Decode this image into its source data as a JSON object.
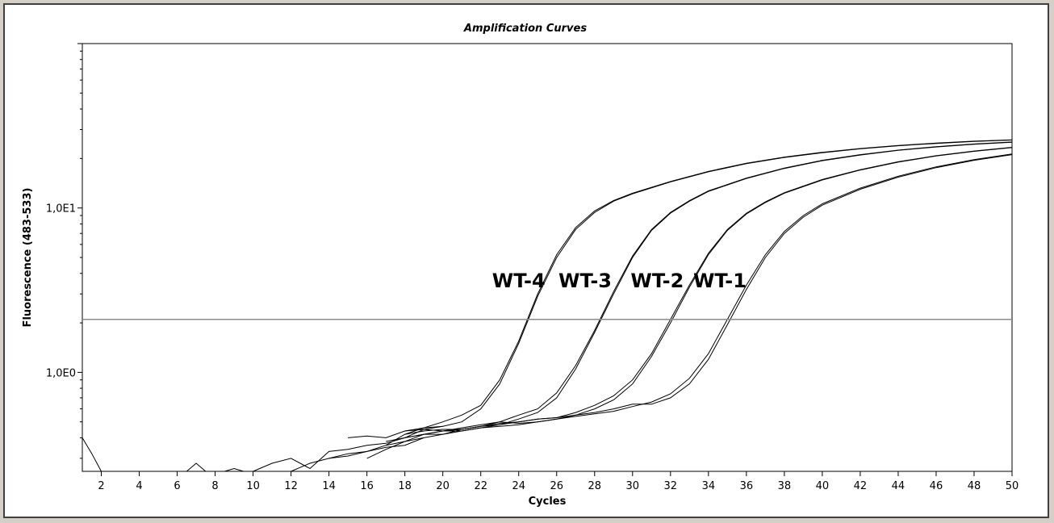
{
  "chart_data": {
    "type": "line",
    "title": "Amplification Curves",
    "xlabel": "Cycles",
    "ylabel": "Fluorescence (483-533)",
    "xlim": [
      1,
      50
    ],
    "ylim": [
      0.25,
      100
    ],
    "yscale": "log",
    "x_ticks": [
      2,
      4,
      6,
      8,
      10,
      12,
      14,
      16,
      18,
      20,
      22,
      24,
      26,
      28,
      30,
      32,
      34,
      36,
      38,
      40,
      42,
      44,
      46,
      48,
      50
    ],
    "y_tick_labels": [
      {
        "value": 1.0,
        "label": "1,0E0"
      },
      {
        "value": 10.0,
        "label": "1,0E1"
      }
    ],
    "grid": false,
    "threshold": 2.1,
    "series": [
      {
        "name": "WT-4",
        "midpoint": 25.0,
        "points": [
          [
            15,
            0.4
          ],
          [
            16,
            0.41
          ],
          [
            17,
            0.4
          ],
          [
            18,
            0.44
          ],
          [
            19,
            0.46
          ],
          [
            20,
            0.5
          ],
          [
            21,
            0.55
          ],
          [
            22,
            0.63
          ],
          [
            23,
            0.9
          ],
          [
            24,
            1.55
          ],
          [
            25,
            3.0
          ],
          [
            26,
            5.2
          ],
          [
            27,
            7.6
          ],
          [
            28,
            9.6
          ],
          [
            29,
            11.1
          ],
          [
            30,
            12.3
          ],
          [
            32,
            14.5
          ],
          [
            34,
            16.7
          ],
          [
            36,
            18.7
          ],
          [
            38,
            20.4
          ],
          [
            40,
            21.8
          ],
          [
            42,
            23.0
          ],
          [
            44,
            24.0
          ],
          [
            46,
            24.8
          ],
          [
            48,
            25.5
          ],
          [
            50,
            26.0
          ]
        ]
      },
      {
        "name": "WT-4",
        "midpoint": 25.0,
        "points": [
          [
            17,
            0.37
          ],
          [
            18,
            0.4
          ],
          [
            19,
            0.45
          ],
          [
            20,
            0.47
          ],
          [
            21,
            0.5
          ],
          [
            22,
            0.6
          ],
          [
            23,
            0.85
          ],
          [
            24,
            1.5
          ],
          [
            25,
            2.9
          ],
          [
            26,
            5.0
          ],
          [
            27,
            7.4
          ],
          [
            28,
            9.4
          ],
          [
            29,
            11.0
          ],
          [
            30,
            12.2
          ],
          [
            32,
            14.4
          ],
          [
            34,
            16.6
          ],
          [
            36,
            18.6
          ],
          [
            38,
            20.3
          ],
          [
            40,
            21.7
          ],
          [
            42,
            22.9
          ],
          [
            44,
            23.9
          ],
          [
            46,
            24.7
          ],
          [
            48,
            25.4
          ],
          [
            50,
            25.9
          ]
        ]
      },
      {
        "name": "WT-3",
        "midpoint": 28.5,
        "points": [
          [
            16,
            0.3
          ],
          [
            17,
            0.34
          ],
          [
            18,
            0.38
          ],
          [
            19,
            0.42
          ],
          [
            20,
            0.44
          ],
          [
            21,
            0.44
          ],
          [
            22,
            0.46
          ],
          [
            23,
            0.48
          ],
          [
            24,
            0.52
          ],
          [
            25,
            0.57
          ],
          [
            26,
            0.7
          ],
          [
            27,
            1.05
          ],
          [
            28,
            1.75
          ],
          [
            29,
            3.0
          ],
          [
            30,
            5.0
          ],
          [
            31,
            7.3
          ],
          [
            32,
            9.3
          ],
          [
            33,
            11.0
          ],
          [
            34,
            12.6
          ],
          [
            36,
            15.1
          ],
          [
            38,
            17.4
          ],
          [
            40,
            19.4
          ],
          [
            42,
            21.0
          ],
          [
            44,
            22.4
          ],
          [
            46,
            23.5
          ],
          [
            48,
            24.4
          ],
          [
            50,
            25.1
          ]
        ]
      },
      {
        "name": "WT-3",
        "midpoint": 28.5,
        "points": [
          [
            17,
            0.36
          ],
          [
            18,
            0.38
          ],
          [
            19,
            0.4
          ],
          [
            20,
            0.42
          ],
          [
            21,
            0.45
          ],
          [
            22,
            0.47
          ],
          [
            23,
            0.5
          ],
          [
            24,
            0.55
          ],
          [
            25,
            0.6
          ],
          [
            26,
            0.75
          ],
          [
            27,
            1.1
          ],
          [
            28,
            1.8
          ],
          [
            29,
            3.1
          ],
          [
            30,
            5.1
          ],
          [
            31,
            7.4
          ],
          [
            32,
            9.4
          ],
          [
            33,
            11.1
          ],
          [
            34,
            12.7
          ],
          [
            36,
            15.2
          ],
          [
            38,
            17.5
          ],
          [
            40,
            19.5
          ],
          [
            42,
            21.1
          ],
          [
            44,
            22.5
          ],
          [
            46,
            23.6
          ],
          [
            48,
            24.5
          ],
          [
            50,
            25.2
          ]
        ]
      },
      {
        "name": "WT-2",
        "midpoint": 32.0,
        "points": [
          [
            17,
            0.38
          ],
          [
            18,
            0.4
          ],
          [
            19,
            0.42
          ],
          [
            20,
            0.42
          ],
          [
            21,
            0.44
          ],
          [
            22,
            0.46
          ],
          [
            23,
            0.47
          ],
          [
            24,
            0.48
          ],
          [
            25,
            0.5
          ],
          [
            26,
            0.52
          ],
          [
            27,
            0.55
          ],
          [
            28,
            0.6
          ],
          [
            29,
            0.68
          ],
          [
            30,
            0.85
          ],
          [
            31,
            1.25
          ],
          [
            32,
            2.0
          ],
          [
            33,
            3.3
          ],
          [
            34,
            5.2
          ],
          [
            35,
            7.3
          ],
          [
            36,
            9.2
          ],
          [
            37,
            10.8
          ],
          [
            38,
            12.3
          ],
          [
            40,
            14.8
          ],
          [
            42,
            17.0
          ],
          [
            44,
            19.0
          ],
          [
            46,
            20.7
          ],
          [
            48,
            22.1
          ],
          [
            50,
            23.3
          ]
        ]
      },
      {
        "name": "WT-2",
        "midpoint": 32.0,
        "points": [
          [
            18,
            0.42
          ],
          [
            19,
            0.44
          ],
          [
            20,
            0.45
          ],
          [
            21,
            0.45
          ],
          [
            22,
            0.47
          ],
          [
            23,
            0.49
          ],
          [
            24,
            0.5
          ],
          [
            25,
            0.52
          ],
          [
            26,
            0.53
          ],
          [
            27,
            0.57
          ],
          [
            28,
            0.63
          ],
          [
            29,
            0.72
          ],
          [
            30,
            0.9
          ],
          [
            31,
            1.3
          ],
          [
            32,
            2.1
          ],
          [
            33,
            3.4
          ],
          [
            34,
            5.3
          ],
          [
            35,
            7.4
          ],
          [
            36,
            9.3
          ],
          [
            37,
            10.9
          ],
          [
            38,
            12.4
          ],
          [
            40,
            14.9
          ],
          [
            42,
            17.1
          ],
          [
            44,
            19.1
          ],
          [
            46,
            20.8
          ],
          [
            48,
            22.2
          ],
          [
            50,
            23.4
          ]
        ]
      },
      {
        "name": "WT-1",
        "midpoint": 35.0,
        "points": [
          [
            18,
            0.44
          ],
          [
            19,
            0.45
          ],
          [
            20,
            0.44
          ],
          [
            21,
            0.46
          ],
          [
            22,
            0.48
          ],
          [
            23,
            0.5
          ],
          [
            24,
            0.49
          ],
          [
            25,
            0.5
          ],
          [
            26,
            0.52
          ],
          [
            27,
            0.54
          ],
          [
            28,
            0.56
          ],
          [
            29,
            0.58
          ],
          [
            30,
            0.62
          ],
          [
            31,
            0.66
          ],
          [
            32,
            0.74
          ],
          [
            33,
            0.92
          ],
          [
            34,
            1.3
          ],
          [
            35,
            2.1
          ],
          [
            36,
            3.4
          ],
          [
            37,
            5.2
          ],
          [
            38,
            7.2
          ],
          [
            39,
            9.0
          ],
          [
            40,
            10.6
          ],
          [
            42,
            13.2
          ],
          [
            44,
            15.6
          ],
          [
            46,
            17.8
          ],
          [
            48,
            19.7
          ],
          [
            50,
            21.3
          ]
        ]
      },
      {
        "name": "WT-1",
        "midpoint": 35.0,
        "points": [
          [
            18,
            0.4
          ],
          [
            19,
            0.42
          ],
          [
            20,
            0.44
          ],
          [
            21,
            0.45
          ],
          [
            22,
            0.47
          ],
          [
            23,
            0.48
          ],
          [
            24,
            0.5
          ],
          [
            25,
            0.52
          ],
          [
            26,
            0.53
          ],
          [
            27,
            0.55
          ],
          [
            28,
            0.57
          ],
          [
            29,
            0.6
          ],
          [
            30,
            0.64
          ],
          [
            31,
            0.64
          ],
          [
            32,
            0.7
          ],
          [
            33,
            0.85
          ],
          [
            34,
            1.2
          ],
          [
            35,
            1.95
          ],
          [
            36,
            3.2
          ],
          [
            37,
            5.0
          ],
          [
            38,
            7.0
          ],
          [
            39,
            8.8
          ],
          [
            40,
            10.4
          ],
          [
            42,
            13.0
          ],
          [
            44,
            15.4
          ],
          [
            46,
            17.6
          ],
          [
            48,
            19.5
          ],
          [
            50,
            21.1
          ]
        ]
      },
      {
        "name": "",
        "midpoint": null,
        "points": [
          [
            1,
            0.4
          ],
          [
            1.5,
            0.32
          ],
          [
            2,
            0.25
          ]
        ]
      },
      {
        "name": "",
        "midpoint": null,
        "points": [
          [
            6.5,
            0.25
          ],
          [
            7,
            0.28
          ],
          [
            7.5,
            0.25
          ]
        ]
      },
      {
        "name": "",
        "midpoint": null,
        "points": [
          [
            8.5,
            0.25
          ],
          [
            9,
            0.26
          ],
          [
            9.5,
            0.25
          ]
        ]
      },
      {
        "name": "",
        "midpoint": null,
        "points": [
          [
            10,
            0.25
          ],
          [
            11,
            0.28
          ],
          [
            12,
            0.3
          ],
          [
            13,
            0.26
          ],
          [
            14,
            0.33
          ],
          [
            15,
            0.34
          ],
          [
            16,
            0.36
          ],
          [
            17,
            0.37
          ]
        ]
      },
      {
        "name": "",
        "midpoint": null,
        "points": [
          [
            12,
            0.25
          ],
          [
            13,
            0.28
          ],
          [
            14,
            0.3
          ],
          [
            15,
            0.31
          ],
          [
            16,
            0.33
          ],
          [
            17,
            0.35
          ],
          [
            18,
            0.36
          ],
          [
            19,
            0.4
          ]
        ]
      },
      {
        "name": "",
        "midpoint": null,
        "points": [
          [
            14,
            0.3
          ],
          [
            15,
            0.32
          ],
          [
            16,
            0.33
          ],
          [
            17,
            0.36
          ],
          [
            18,
            0.42
          ],
          [
            19,
            0.46
          ],
          [
            20,
            0.47
          ]
        ]
      }
    ],
    "annotations": [
      {
        "text": "WT-4",
        "x": 24.0,
        "y": 3.3
      },
      {
        "text": "WT-3",
        "x": 27.5,
        "y": 3.3
      },
      {
        "text": "WT-2",
        "x": 31.3,
        "y": 3.3
      },
      {
        "text": "WT-1",
        "x": 34.6,
        "y": 3.3
      }
    ]
  }
}
